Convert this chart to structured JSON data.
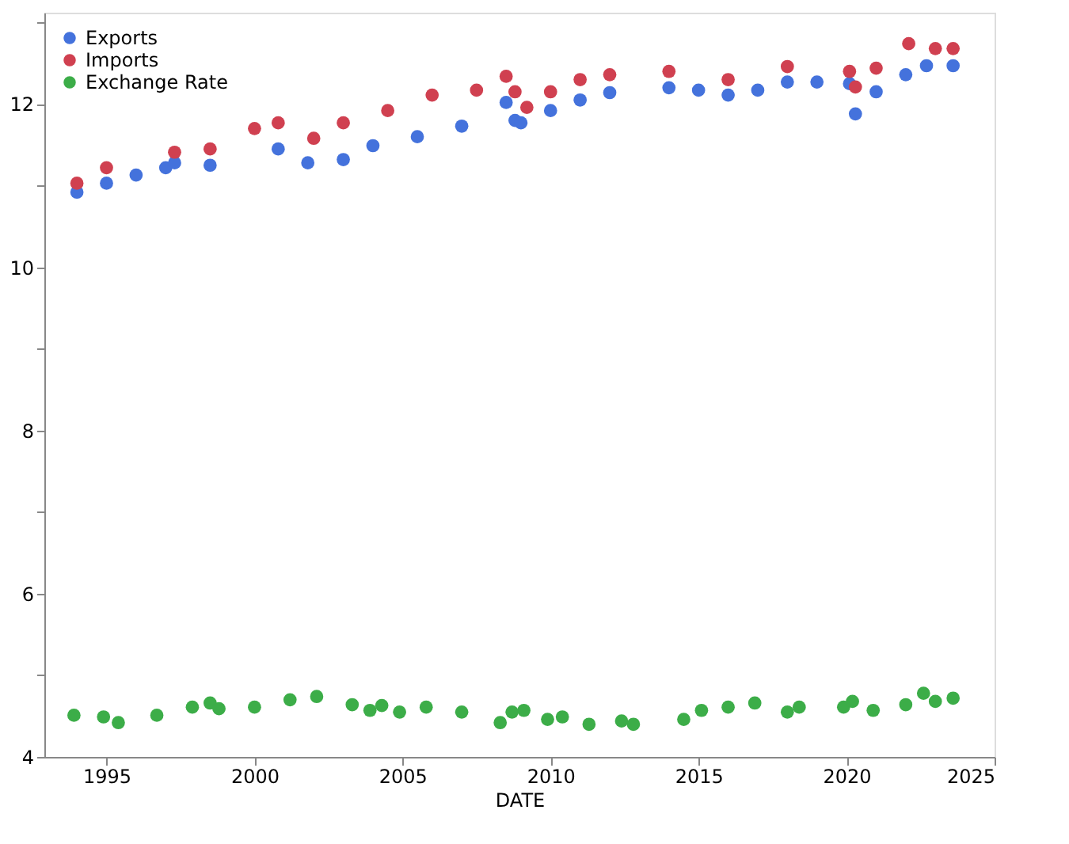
{
  "chart_data": {
    "type": "scatter",
    "xlabel": "DATE",
    "xlim": [
      1992.9,
      2025
    ],
    "xticks": [
      1995,
      2000,
      2005,
      2010,
      2015,
      2020,
      2025
    ],
    "ylim": [
      4,
      13.12
    ],
    "yticks": [
      4,
      {
        "value": 5,
        "label": null
      },
      6,
      {
        "value": 7,
        "label": null
      },
      8,
      {
        "value": 9,
        "label": null
      },
      10,
      {
        "value": 11,
        "label": null
      },
      12,
      {
        "value": 13,
        "label": null
      }
    ],
    "grid": false,
    "legend": "top left",
    "marker": "circle",
    "series": [
      {
        "name": "Exports",
        "color": "#4472dc",
        "x": [
          1994.0,
          1995,
          1996,
          1997,
          1997.3,
          1998.5,
          2000.8,
          2001.8,
          2003,
          2004,
          2005.5,
          2007,
          2008.5,
          2008.8,
          2009.0,
          2010,
          2011,
          2012,
          2014,
          2015,
          2016,
          2017,
          2018,
          2019,
          2020.1,
          2020.3,
          2021,
          2022,
          2022.7,
          2023.6
        ],
        "values": [
          10.92,
          11.03,
          11.13,
          11.22,
          11.28,
          11.25,
          11.45,
          11.28,
          11.32,
          11.49,
          11.6,
          11.73,
          12.02,
          11.8,
          11.77,
          11.92,
          12.05,
          12.14,
          12.2,
          12.17,
          12.11,
          12.17,
          12.27,
          12.27,
          12.25,
          11.88,
          12.15,
          12.36,
          12.47,
          12.47
        ]
      },
      {
        "name": "Imports",
        "color": "#d04050",
        "x": [
          1994.0,
          1995,
          1997.3,
          1998.5,
          2000,
          2000.8,
          2002,
          2003,
          2004.5,
          2006,
          2007.5,
          2008.5,
          2008.8,
          2009.2,
          2010,
          2011,
          2012,
          2014,
          2016,
          2018,
          2020.1,
          2020.3,
          2021,
          2022.1,
          2023,
          2023.6
        ],
        "values": [
          11.03,
          11.22,
          11.41,
          11.45,
          11.7,
          11.77,
          11.58,
          11.77,
          11.92,
          12.11,
          12.17,
          12.34,
          12.15,
          11.96,
          12.15,
          12.3,
          12.36,
          12.4,
          12.3,
          12.46,
          12.4,
          12.21,
          12.44,
          12.74,
          12.68,
          12.68
        ]
      },
      {
        "name": "Exchange Rate",
        "color": "#3cad48",
        "x": [
          1993.9,
          1994.9,
          1995.4,
          1996.7,
          1997.9,
          1998.5,
          1998.8,
          2000,
          2001.2,
          2002.1,
          2003.3,
          2003.9,
          2004.3,
          2004.9,
          2005.8,
          2007,
          2008.3,
          2008.7,
          2009.1,
          2009.9,
          2010.4,
          2011.3,
          2012.4,
          2012.8,
          2014.5,
          2015.1,
          2016,
          2016.9,
          2018,
          2018.4,
          2019.9,
          2020.2,
          2020.9,
          2022,
          2022.6,
          2023,
          2023.6
        ],
        "values": [
          4.51,
          4.49,
          4.42,
          4.51,
          4.61,
          4.66,
          4.59,
          4.61,
          4.7,
          4.74,
          4.64,
          4.57,
          4.63,
          4.55,
          4.61,
          4.55,
          4.42,
          4.55,
          4.57,
          4.46,
          4.49,
          4.4,
          4.44,
          4.4,
          4.46,
          4.57,
          4.61,
          4.66,
          4.55,
          4.61,
          4.61,
          4.68,
          4.57,
          4.64,
          4.78,
          4.68,
          4.72
        ]
      }
    ]
  }
}
